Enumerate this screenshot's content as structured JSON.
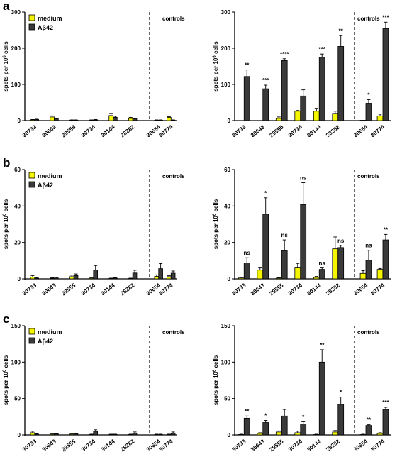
{
  "colors": {
    "medium": "#f5f500",
    "abeta": "#3a3a3a"
  },
  "rows": [
    {
      "letter": "a"
    },
    {
      "letter": "b"
    },
    {
      "letter": "c"
    }
  ],
  "chart_data": [
    {
      "type": "bar",
      "panel": "a",
      "side": "left",
      "ylabel": "spots per 10^6 cells",
      "categories": [
        "30733",
        "30643",
        "29555",
        "30734",
        "30144",
        "28282",
        "30654",
        "30774"
      ],
      "ylim": [
        0,
        300
      ],
      "yticks": [
        0,
        100,
        200,
        300
      ],
      "legend": [
        "medium",
        "Aβ42"
      ],
      "annotation": "controls",
      "series": [
        {
          "name": "medium",
          "values": [
            2,
            10,
            1,
            1,
            14,
            6,
            1,
            9
          ],
          "errors": [
            1,
            3,
            1,
            1,
            6,
            3,
            1,
            2
          ]
        },
        {
          "name": "Aβ42",
          "values": [
            3,
            5,
            1,
            2,
            9,
            5,
            1,
            1
          ],
          "errors": [
            1,
            2,
            1,
            1,
            3,
            2,
            1,
            1
          ]
        }
      ]
    },
    {
      "type": "bar",
      "panel": "a",
      "side": "right",
      "ylabel": "spots per 10^6 cells",
      "categories": [
        "30733",
        "30643",
        "29555",
        "30734",
        "30144",
        "28282",
        "30654",
        "30774"
      ],
      "ylim": [
        0,
        300
      ],
      "yticks": [
        0,
        100,
        200,
        300
      ],
      "annotation": "controls",
      "significance": [
        "**",
        "***",
        "****",
        "",
        "***",
        "**",
        "*",
        "***"
      ],
      "series": [
        {
          "name": "medium",
          "values": [
            0,
            0,
            6,
            26,
            26,
            20,
            1,
            13
          ],
          "errors": [
            0,
            0,
            4,
            2,
            8,
            6,
            0,
            5
          ]
        },
        {
          "name": "Aβ42",
          "values": [
            122,
            88,
            166,
            68,
            175,
            205,
            48,
            254
          ],
          "errors": [
            18,
            10,
            5,
            17,
            9,
            30,
            10,
            18
          ]
        }
      ]
    },
    {
      "type": "bar",
      "panel": "b",
      "side": "left",
      "ylabel": "spots per 10^6 cells",
      "categories": [
        "30733",
        "30643",
        "29555",
        "30734",
        "30144",
        "28282",
        "30654",
        "30774"
      ],
      "ylim": [
        0,
        60
      ],
      "yticks": [
        0,
        20,
        40,
        60
      ],
      "legend": [
        "medium",
        "Aβ42"
      ],
      "annotation": "controls",
      "series": [
        {
          "name": "medium",
          "values": [
            1,
            0.3,
            1.2,
            0.4,
            0.2,
            0.2,
            1.4,
            1.2
          ],
          "errors": [
            0.8,
            0.3,
            0.8,
            0.4,
            0.2,
            0.2,
            0.8,
            0.5
          ]
        },
        {
          "name": "Aβ42",
          "values": [
            0.4,
            0.5,
            1.8,
            4.8,
            0.4,
            3.2,
            5.6,
            3.1
          ],
          "errors": [
            0.4,
            0.4,
            0.9,
            2.5,
            0.3,
            1.5,
            2.8,
            1.2
          ]
        }
      ]
    },
    {
      "type": "bar",
      "panel": "b",
      "side": "right",
      "ylabel": "spots per 10^6 cells",
      "categories": [
        "30733",
        "30643",
        "29555",
        "30734",
        "30144",
        "28282",
        "30654",
        "30774"
      ],
      "ylim": [
        0,
        60
      ],
      "yticks": [
        0,
        20,
        40,
        60
      ],
      "annotation": "controls",
      "significance": [
        "ns",
        "*",
        "ns",
        "ns",
        "ns",
        "ns",
        "ns",
        "**"
      ],
      "series": [
        {
          "name": "medium",
          "values": [
            0.5,
            4.8,
            0.4,
            6,
            0.8,
            16.5,
            3,
            5.2
          ],
          "errors": [
            0.4,
            1.2,
            0.3,
            2.5,
            0.5,
            6.5,
            1.5,
            0.5
          ]
        },
        {
          "name": "Aβ42",
          "values": [
            8.8,
            35.5,
            15.4,
            40.8,
            5.2,
            17.2,
            10.2,
            21.4
          ],
          "errors": [
            2.8,
            9,
            6,
            12,
            0.8,
            1.2,
            5.5,
            3
          ]
        }
      ]
    },
    {
      "type": "bar",
      "panel": "c",
      "side": "left",
      "ylabel": "spots per 10^6 cells",
      "categories": [
        "30733",
        "30643",
        "29555",
        "30734",
        "30144",
        "28282",
        "30654",
        "30774"
      ],
      "ylim": [
        0,
        150
      ],
      "yticks": [
        0,
        50,
        100,
        150
      ],
      "legend": [
        "medium",
        "Aβ42"
      ],
      "annotation": "controls",
      "series": [
        {
          "name": "medium",
          "values": [
            3,
            1,
            1,
            0.5,
            0.5,
            0.5,
            0.5,
            0.5
          ],
          "errors": [
            2,
            1,
            1,
            0.5,
            0.5,
            0.5,
            0.5,
            0.5
          ]
        },
        {
          "name": "Aβ42",
          "values": [
            1,
            1.5,
            1.5,
            5,
            0.5,
            2.5,
            0.5,
            2.5
          ],
          "errors": [
            0.5,
            0.5,
            1,
            2,
            0.5,
            1.5,
            0.5,
            1.5
          ]
        }
      ]
    },
    {
      "type": "bar",
      "panel": "c",
      "side": "right",
      "ylabel": "spots per 10^6 cells",
      "categories": [
        "30733",
        "30643",
        "29555",
        "30734",
        "30144",
        "28282",
        "30654",
        "30774"
      ],
      "ylim": [
        0,
        150
      ],
      "yticks": [
        0,
        50,
        100,
        150
      ],
      "annotation": "controls",
      "significance": [
        "**",
        "*",
        "",
        "*",
        "**",
        "*",
        "**",
        "***"
      ],
      "series": [
        {
          "name": "medium",
          "values": [
            0.5,
            2,
            4,
            3,
            0.5,
            4,
            0.5,
            2
          ],
          "errors": [
            0.5,
            1,
            1.5,
            2,
            0.5,
            2,
            0.5,
            1
          ]
        },
        {
          "name": "Aβ42",
          "values": [
            23,
            17,
            26,
            15,
            100,
            42,
            13,
            35
          ],
          "errors": [
            3,
            3,
            9,
            3,
            17,
            10,
            1,
            3
          ]
        }
      ]
    }
  ]
}
